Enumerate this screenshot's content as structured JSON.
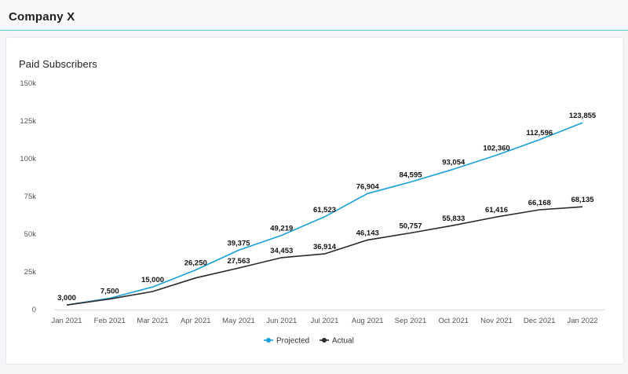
{
  "header": {
    "title": "Company X"
  },
  "colors": {
    "projected": "#1aa0db",
    "actual": "#2a2a2a",
    "header_rule": "#56c3e8"
  },
  "chart_data": {
    "type": "line",
    "title": "Paid Subscribers",
    "categories": [
      "Jan 2021",
      "Feb 2021",
      "Mar 2021",
      "Apr 2021",
      "May 2021",
      "Jun 2021",
      "Jul 2021",
      "Aug 2021",
      "Sep 2021",
      "Oct 2021",
      "Nov 2021",
      "Dec 2021",
      "Jan 2022"
    ],
    "series": [
      {
        "name": "Projected",
        "values": [
          3000,
          7500,
          15000,
          26250,
          39375,
          49219,
          61523,
          76904,
          84595,
          93054,
          102360,
          112596,
          123855
        ],
        "labels": [
          "",
          "7,500",
          "15,000",
          "26,250",
          "39,375",
          "49,219",
          "61,523",
          "76,904",
          "84,595",
          "93,054",
          "102,360",
          "112,596",
          "123,855"
        ]
      },
      {
        "name": "Actual",
        "values": [
          3000,
          7000,
          12000,
          21000,
          27563,
          34453,
          36914,
          46143,
          50757,
          55833,
          61416,
          66168,
          68135
        ],
        "labels": [
          "3,000",
          "",
          "",
          "",
          "27,563",
          "34,453",
          "36,914",
          "46,143",
          "50,757",
          "55,833",
          "61,416",
          "66,168",
          "68,135"
        ]
      }
    ],
    "ylim": [
      0,
      150000
    ],
    "yticks": [
      0,
      25000,
      50000,
      75000,
      100000,
      125000,
      150000
    ],
    "ytick_labels": [
      "0",
      "25k",
      "50k",
      "75k",
      "100k",
      "125k",
      "150k"
    ],
    "xlabel": "",
    "ylabel": "",
    "grid": false,
    "legend": "bottom-center"
  }
}
